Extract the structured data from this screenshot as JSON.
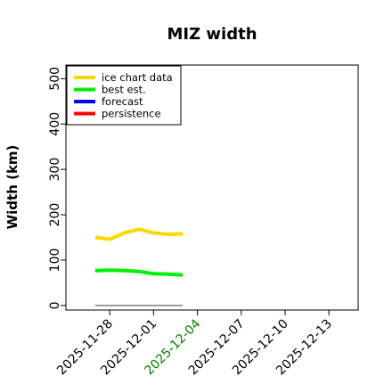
{
  "chart_data": {
    "type": "line",
    "title": "MIZ width",
    "xlabel": "",
    "ylabel": "Width (km)",
    "xlim": [
      "2025-11-25",
      "2025-12-15"
    ],
    "ylim": [
      -10,
      530
    ],
    "yticks": [
      0,
      100,
      200,
      300,
      400,
      500
    ],
    "yticks_labels": [
      "0",
      "100",
      "200",
      "300",
      "400",
      "500"
    ],
    "xticks": [
      "2025-11-28",
      "2025-12-01",
      "2025-12-04",
      "2025-12-07",
      "2025-12-10",
      "2025-12-13"
    ],
    "highlight_tick": "2025-12-04",
    "highlight_color": "#008000",
    "grid": false,
    "legend_position": "top-left",
    "series": [
      {
        "name": "ice chart data",
        "color": "#FFD700",
        "x": [
          "2025-11-27",
          "2025-11-28",
          "2025-11-29",
          "2025-11-30",
          "2025-12-01",
          "2025-12-02",
          "2025-12-03"
        ],
        "y": [
          150,
          146,
          160,
          168,
          160,
          157,
          158
        ]
      },
      {
        "name": "best est.",
        "color": "#00EE00",
        "x": [
          "2025-11-27",
          "2025-11-28",
          "2025-11-29",
          "2025-11-30",
          "2025-12-01",
          "2025-12-02",
          "2025-12-03"
        ],
        "y": [
          77,
          78,
          77,
          75,
          70,
          69,
          67
        ]
      },
      {
        "name": "forecast",
        "color": "#0000FF",
        "x": [],
        "y": []
      },
      {
        "name": "persistence",
        "color": "#FF0000",
        "x": [],
        "y": []
      }
    ],
    "reference_line": {
      "color": "#808080",
      "x": [
        "2025-11-27",
        "2025-12-03"
      ],
      "y": [
        0,
        0
      ]
    }
  }
}
